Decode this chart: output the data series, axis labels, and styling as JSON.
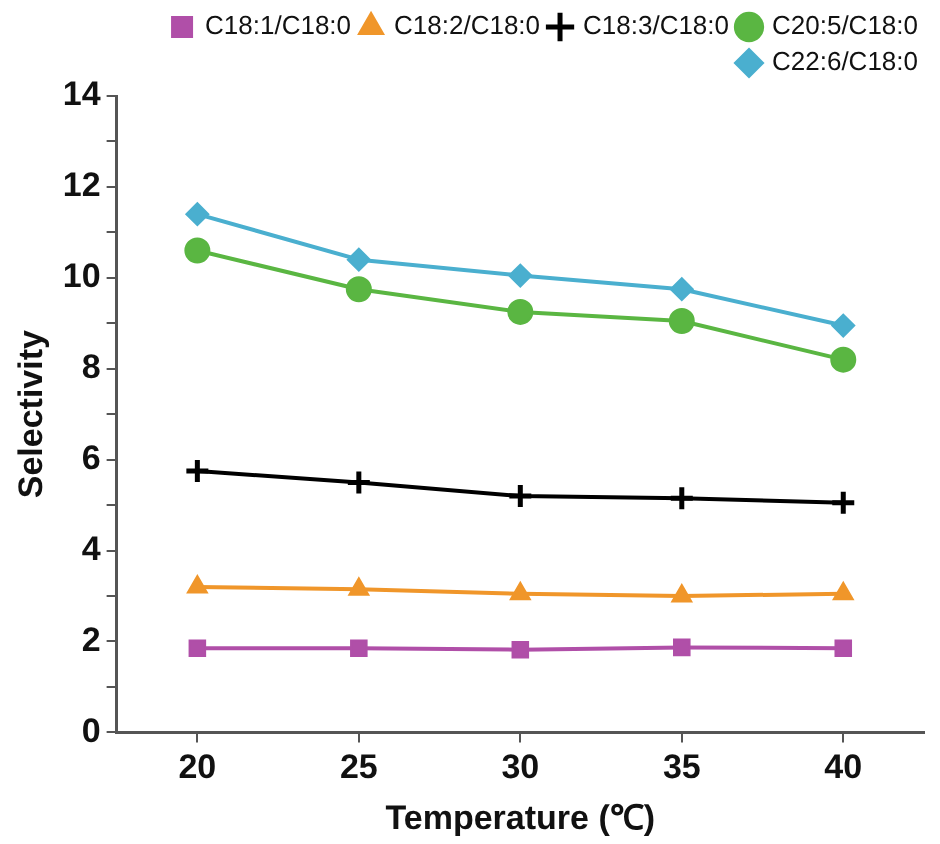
{
  "chart_data": {
    "type": "line",
    "xlabel": "Temperature (℃)",
    "ylabel": "Selectivity",
    "x": [
      20,
      25,
      30,
      35,
      40
    ],
    "xlim": [
      17.5,
      42.5
    ],
    "xticks": [
      20,
      25,
      30,
      35,
      40
    ],
    "ylim": [
      0,
      14
    ],
    "yticks": [
      0,
      {
        "value": 1,
        "label": null
      },
      2,
      {
        "value": 3,
        "label": null
      },
      4,
      {
        "value": 5,
        "label": null
      },
      6,
      {
        "value": 7,
        "label": null
      },
      8,
      {
        "value": 9,
        "label": null
      },
      10,
      {
        "value": 11,
        "label": null
      },
      12,
      {
        "value": 13,
        "label": null
      },
      14
    ],
    "grid": false,
    "legend": "top right",
    "line_style": "solid",
    "series": [
      {
        "name": "C18:1/C18:0",
        "color": "#b04fa8",
        "marker": "square",
        "values": [
          1.85,
          1.85,
          1.82,
          1.87,
          1.85
        ]
      },
      {
        "name": "C18:2/C18:0",
        "color": "#f0962a",
        "marker": "triangle",
        "values": [
          3.2,
          3.15,
          3.05,
          3.0,
          3.05
        ]
      },
      {
        "name": "C18:3/C18:0",
        "color": "#000000",
        "marker": "cross",
        "values": [
          5.75,
          5.5,
          5.2,
          5.15,
          5.05
        ]
      },
      {
        "name": "C20:5/C18:0",
        "color": "#5ab642",
        "marker": "circle",
        "values": [
          10.6,
          9.75,
          9.25,
          9.05,
          8.2
        ]
      },
      {
        "name": "C22:6/C18:0",
        "color": "#4aafcf",
        "marker": "diamond",
        "values": [
          11.4,
          10.4,
          10.05,
          9.75,
          8.95
        ]
      }
    ]
  }
}
